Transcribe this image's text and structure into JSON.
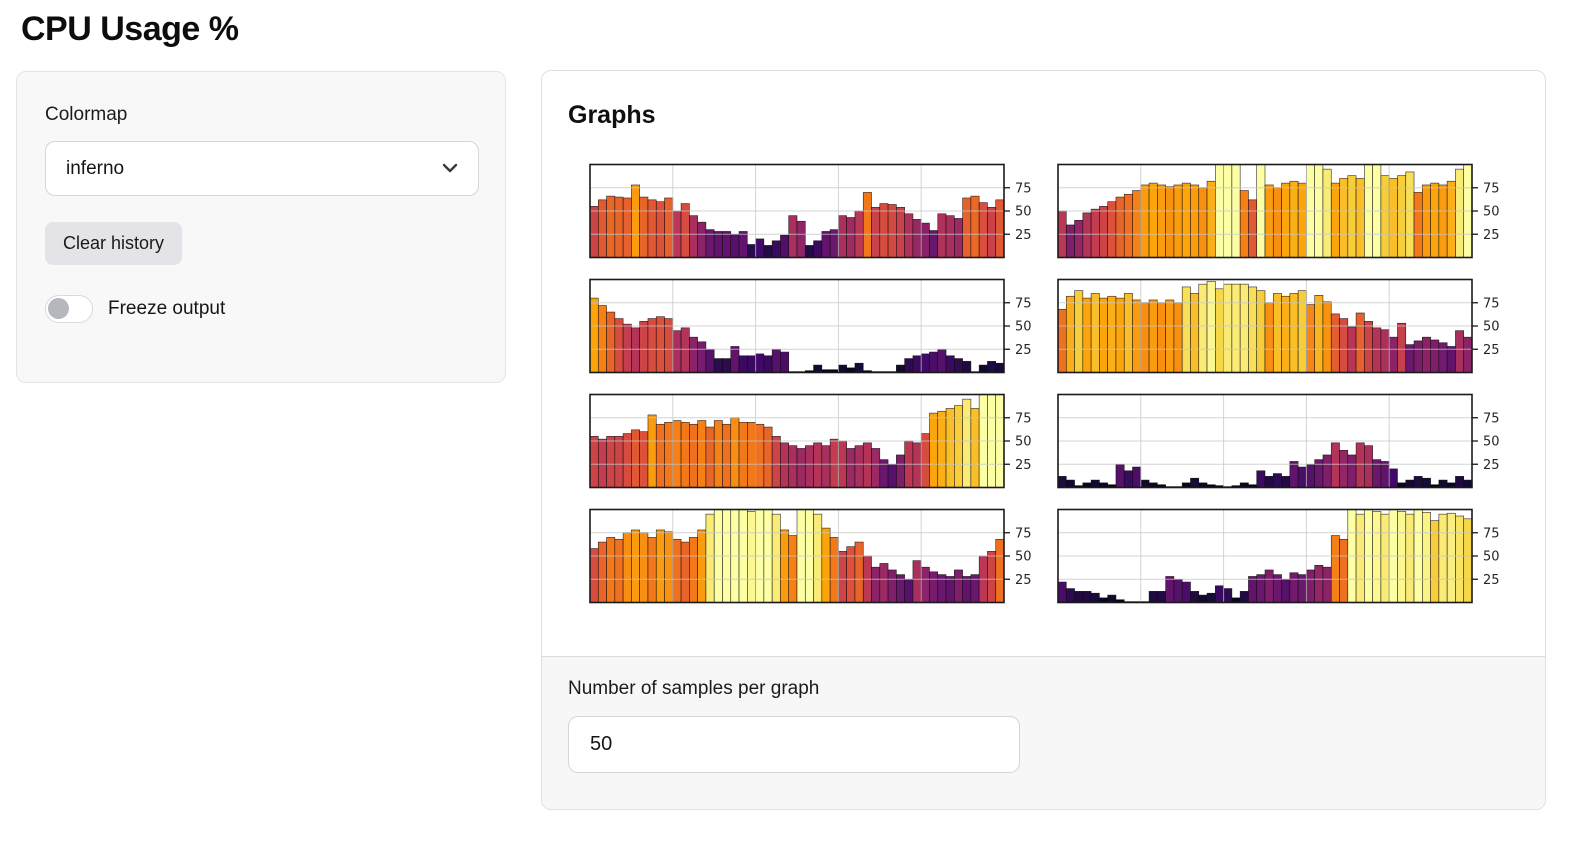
{
  "header": {
    "title": "CPU Usage %"
  },
  "controls": {
    "colormap_label": "Colormap",
    "colormap_value": "inferno",
    "clear_history_label": "Clear history",
    "freeze_output_label": "Freeze output",
    "freeze_output_on": false
  },
  "graphs": {
    "panel_title": "Graphs",
    "samples_label": "Number of samples per graph",
    "samples_value": "50"
  },
  "colors": {
    "inferno_stops": [
      "#000004",
      "#160b39",
      "#420a68",
      "#6a176e",
      "#932667",
      "#bc3754",
      "#dd513a",
      "#f37819",
      "#fca50a",
      "#f6d746",
      "#fcffa4"
    ],
    "grid_line": "#c6c6c6",
    "axis_frame": "#1a1a1a",
    "tick_text": "#262626"
  },
  "chart_data": [
    {
      "type": "bar",
      "colormap": "inferno",
      "ylim": [
        0,
        100
      ],
      "yticks": [
        25,
        50,
        75
      ],
      "ytick_labels": [
        "25",
        "50",
        "75"
      ],
      "xticks": [
        10,
        20,
        30,
        40
      ],
      "grid": true,
      "values": [
        55,
        62,
        66,
        65,
        64,
        78,
        65,
        62,
        60,
        64,
        50,
        58,
        45,
        38,
        30,
        28,
        28,
        25,
        28,
        14,
        20,
        13,
        18,
        24,
        45,
        39,
        13,
        18,
        28,
        30,
        45,
        43,
        50,
        70,
        54,
        58,
        57,
        54,
        47,
        41,
        37,
        29,
        47,
        45,
        42,
        64,
        66,
        59,
        54,
        62
      ]
    },
    {
      "type": "bar",
      "colormap": "inferno",
      "ylim": [
        0,
        100
      ],
      "yticks": [
        25,
        50,
        75
      ],
      "ytick_labels": [
        "25",
        "50",
        "75"
      ],
      "xticks": [
        10,
        20,
        30,
        40
      ],
      "grid": true,
      "values": [
        50,
        35,
        40,
        48,
        52,
        55,
        60,
        65,
        68,
        72,
        78,
        80,
        78,
        76,
        78,
        80,
        78,
        75,
        82,
        100,
        100,
        100,
        72,
        62,
        100,
        78,
        75,
        80,
        82,
        80,
        100,
        100,
        95,
        80,
        85,
        88,
        85,
        100,
        100,
        88,
        85,
        88,
        92,
        70,
        78,
        80,
        78,
        82,
        95,
        100
      ]
    },
    {
      "type": "bar",
      "colormap": "inferno",
      "ylim": [
        0,
        100
      ],
      "yticks": [
        25,
        50,
        75
      ],
      "ytick_labels": [
        "25",
        "50",
        "75"
      ],
      "xticks": [
        10,
        20,
        30,
        40
      ],
      "grid": true,
      "values": [
        80,
        72,
        65,
        58,
        52,
        48,
        55,
        58,
        60,
        58,
        45,
        48,
        38,
        33,
        25,
        15,
        15,
        28,
        18,
        18,
        20,
        18,
        25,
        22,
        0,
        0,
        2,
        8,
        3,
        3,
        8,
        5,
        10,
        2,
        0,
        0,
        0,
        8,
        15,
        18,
        20,
        22,
        25,
        18,
        15,
        12,
        0,
        8,
        12,
        10
      ]
    },
    {
      "type": "bar",
      "colormap": "inferno",
      "ylim": [
        0,
        100
      ],
      "yticks": [
        25,
        50,
        75
      ],
      "ytick_labels": [
        "25",
        "50",
        "75"
      ],
      "xticks": [
        10,
        20,
        30,
        40
      ],
      "grid": true,
      "values": [
        68,
        82,
        88,
        80,
        85,
        80,
        82,
        80,
        85,
        78,
        75,
        78,
        75,
        78,
        75,
        92,
        85,
        95,
        98,
        90,
        95,
        95,
        95,
        92,
        88,
        75,
        85,
        82,
        85,
        88,
        73,
        83,
        76,
        63,
        58,
        49,
        64,
        55,
        48,
        46,
        38,
        53,
        30,
        34,
        38,
        35,
        32,
        28,
        45,
        38
      ]
    },
    {
      "type": "bar",
      "colormap": "inferno",
      "ylim": [
        0,
        100
      ],
      "yticks": [
        25,
        50,
        75
      ],
      "ytick_labels": [
        "25",
        "50",
        "75"
      ],
      "xticks": [
        10,
        20,
        30,
        40
      ],
      "grid": true,
      "values": [
        55,
        52,
        55,
        55,
        58,
        62,
        60,
        78,
        68,
        70,
        72,
        70,
        68,
        72,
        65,
        72,
        68,
        75,
        70,
        70,
        68,
        65,
        55,
        48,
        45,
        42,
        45,
        48,
        45,
        52,
        50,
        42,
        45,
        48,
        42,
        30,
        25,
        35,
        50,
        48,
        58,
        80,
        82,
        85,
        88,
        95,
        85,
        100,
        100,
        100
      ]
    },
    {
      "type": "bar",
      "colormap": "inferno",
      "ylim": [
        0,
        100
      ],
      "yticks": [
        25,
        50,
        75
      ],
      "ytick_labels": [
        "25",
        "50",
        "75"
      ],
      "xticks": [
        10,
        20,
        30,
        40
      ],
      "grid": true,
      "values": [
        12,
        8,
        2,
        5,
        8,
        5,
        3,
        25,
        18,
        22,
        8,
        5,
        3,
        0,
        0,
        5,
        10,
        5,
        3,
        2,
        0,
        2,
        5,
        3,
        18,
        12,
        15,
        12,
        28,
        22,
        25,
        30,
        35,
        48,
        40,
        35,
        48,
        45,
        30,
        28,
        20,
        5,
        8,
        12,
        10,
        3,
        8,
        5,
        12,
        8
      ]
    },
    {
      "type": "bar",
      "colormap": "inferno",
      "ylim": [
        0,
        100
      ],
      "yticks": [
        25,
        50,
        75
      ],
      "ytick_labels": [
        "25",
        "50",
        "75"
      ],
      "xticks": [
        10,
        20,
        30,
        40
      ],
      "grid": true,
      "values": [
        58,
        65,
        70,
        68,
        75,
        78,
        75,
        70,
        78,
        76,
        68,
        65,
        70,
        78,
        95,
        100,
        100,
        100,
        100,
        98,
        100,
        100,
        95,
        78,
        72,
        100,
        100,
        95,
        80,
        70,
        55,
        60,
        65,
        50,
        38,
        42,
        35,
        30,
        25,
        45,
        38,
        33,
        30,
        28,
        35,
        28,
        30,
        50,
        55,
        68
      ]
    },
    {
      "type": "bar",
      "colormap": "inferno",
      "ylim": [
        0,
        100
      ],
      "yticks": [
        25,
        50,
        75
      ],
      "ytick_labels": [
        "25",
        "50",
        "75"
      ],
      "xticks": [
        10,
        20,
        30,
        40
      ],
      "grid": true,
      "values": [
        22,
        15,
        12,
        12,
        10,
        5,
        8,
        3,
        0,
        0,
        0,
        12,
        12,
        28,
        25,
        22,
        12,
        8,
        10,
        18,
        15,
        5,
        12,
        28,
        30,
        35,
        30,
        25,
        32,
        30,
        35,
        40,
        38,
        72,
        68,
        100,
        95,
        100,
        98,
        95,
        100,
        98,
        95,
        100,
        97,
        88,
        95,
        96,
        93,
        90
      ]
    }
  ]
}
